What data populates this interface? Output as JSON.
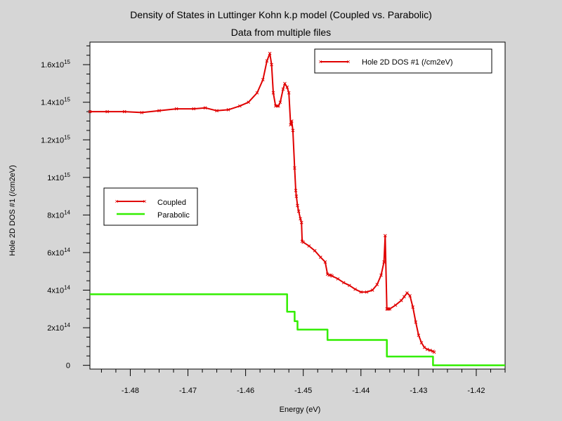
{
  "chart_data": {
    "type": "line",
    "title": "Density of States in Luttinger Kohn k.p model (Coupled vs. Parabolic)",
    "subtitle": "Data from multiple files",
    "xlabel": "Energy (eV)",
    "ylabel": "Hole 2D DOS #1 (/cm2eV)",
    "xlim": [
      -1.487,
      -1.415
    ],
    "ylim": [
      -20000000000000.0,
      1720000000000000.0
    ],
    "grid": false,
    "x_ticks": [
      {
        "value": -1.48,
        "label": "-1.48"
      },
      {
        "value": -1.47,
        "label": "-1.47"
      },
      {
        "value": -1.46,
        "label": "-1.46"
      },
      {
        "value": -1.45,
        "label": "-1.45"
      },
      {
        "value": -1.44,
        "label": "-1.44"
      },
      {
        "value": -1.43,
        "label": "-1.43"
      },
      {
        "value": -1.42,
        "label": "-1.42"
      }
    ],
    "y_ticks": [
      {
        "value": 0,
        "mantissa": "0",
        "exponent": ""
      },
      {
        "value": 200000000000000.0,
        "mantissa": "2x10",
        "exponent": "14"
      },
      {
        "value": 400000000000000.0,
        "mantissa": "4x10",
        "exponent": "14"
      },
      {
        "value": 600000000000000.0,
        "mantissa": "6x10",
        "exponent": "14"
      },
      {
        "value": 800000000000000.0,
        "mantissa": "8x10",
        "exponent": "14"
      },
      {
        "value": 1000000000000000.0,
        "mantissa": "1x10",
        "exponent": "15"
      },
      {
        "value": 1200000000000000.0,
        "mantissa": "1.2x10",
        "exponent": "15"
      },
      {
        "value": 1400000000000000.0,
        "mantissa": "1.4x10",
        "exponent": "15"
      },
      {
        "value": 1600000000000000.0,
        "mantissa": "1.6x10",
        "exponent": "15"
      }
    ],
    "legends": [
      {
        "placement": "top-right",
        "entries": [
          "Hole 2D DOS #1 (/cm2eV)"
        ],
        "colors": [
          "#e00000"
        ]
      },
      {
        "placement": "middle-left",
        "entries": [
          "Coupled",
          "Parabolic"
        ],
        "colors": [
          "#e00000",
          "#33ee00"
        ]
      }
    ],
    "series": [
      {
        "name": "Coupled",
        "color": "#e00000",
        "marker": "x",
        "x": [
          -1.487,
          -1.484,
          -1.481,
          -1.478,
          -1.475,
          -1.472,
          -1.469,
          -1.467,
          -1.465,
          -1.463,
          -1.461,
          -1.4595,
          -1.458,
          -1.457,
          -1.4563,
          -1.4558,
          -1.4555,
          -1.4552,
          -1.4548,
          -1.4545,
          -1.4543,
          -1.454,
          -1.4535,
          -1.4532,
          -1.4528,
          -1.4525,
          -1.4522,
          -1.452,
          -1.4518,
          -1.4515,
          -1.4513,
          -1.4512,
          -1.451,
          -1.4508,
          -1.4505,
          -1.4503,
          -1.4502,
          -1.45,
          -1.449,
          -1.448,
          -1.447,
          -1.4462,
          -1.4458,
          -1.4455,
          -1.4452,
          -1.445,
          -1.444,
          -1.443,
          -1.442,
          -1.441,
          -1.44,
          -1.439,
          -1.438,
          -1.4372,
          -1.4365,
          -1.436,
          -1.4358,
          -1.4355,
          -1.4354,
          -1.4353,
          -1.4352,
          -1.435,
          -1.434,
          -1.433,
          -1.4325,
          -1.432,
          -1.4315,
          -1.431,
          -1.4305,
          -1.43,
          -1.4295,
          -1.429,
          -1.4285,
          -1.428,
          -1.4275,
          -1.4273
        ],
        "y": [
          1350000000000000.0,
          1350000000000000.0,
          1350000000000000.0,
          1345000000000000.0,
          1355000000000000.0,
          1365000000000000.0,
          1365000000000000.0,
          1370000000000000.0,
          1355000000000000.0,
          1360000000000000.0,
          1380000000000000.0,
          1400000000000000.0,
          1450000000000000.0,
          1520000000000000.0,
          1620000000000000.0,
          1660000000000000.0,
          1600000000000000.0,
          1450000000000000.0,
          1380000000000000.0,
          1380000000000000.0,
          1380000000000000.0,
          1400000000000000.0,
          1470000000000000.0,
          1500000000000000.0,
          1480000000000000.0,
          1450000000000000.0,
          1280000000000000.0,
          1300000000000000.0,
          1250000000000000.0,
          1050000000000000.0,
          930000000000000.0,
          900000000000000.0,
          850000000000000.0,
          820000000000000.0,
          780000000000000.0,
          760000000000000.0,
          660000000000000.0,
          655000000000000.0,
          635000000000000.0,
          610000000000000.0,
          575000000000000.0,
          550000000000000.0,
          485000000000000.0,
          480000000000000.0,
          480000000000000.0,
          475000000000000.0,
          460000000000000.0,
          440000000000000.0,
          425000000000000.0,
          405000000000000.0,
          390000000000000.0,
          390000000000000.0,
          400000000000000.0,
          430000000000000.0,
          480000000000000.0,
          550000000000000.0,
          690000000000000.0,
          300000000000000.0,
          300000000000000.0,
          300000000000000.0,
          300000000000000.0,
          300000000000000.0,
          320000000000000.0,
          345000000000000.0,
          365000000000000.0,
          385000000000000.0,
          370000000000000.0,
          310000000000000.0,
          230000000000000.0,
          160000000000000.0,
          120000000000000.0,
          95000000000000.0,
          85000000000000.0,
          80000000000000.0,
          75000000000000.0,
          70000000000000.0
        ]
      },
      {
        "name": "Parabolic",
        "color": "#33ee00",
        "marker": "none",
        "x": [
          -1.487,
          -1.4528,
          -1.4528,
          -1.4515,
          -1.4515,
          -1.451,
          -1.451,
          -1.4458,
          -1.4458,
          -1.4355,
          -1.4355,
          -1.4275,
          -1.4275,
          -1.415
        ],
        "y": [
          378000000000000.0,
          378000000000000.0,
          285000000000000.0,
          285000000000000.0,
          235000000000000.0,
          235000000000000.0,
          190000000000000.0,
          190000000000000.0,
          135000000000000.0,
          135000000000000.0,
          47000000000000.0,
          47000000000000.0,
          0,
          0
        ]
      }
    ]
  }
}
